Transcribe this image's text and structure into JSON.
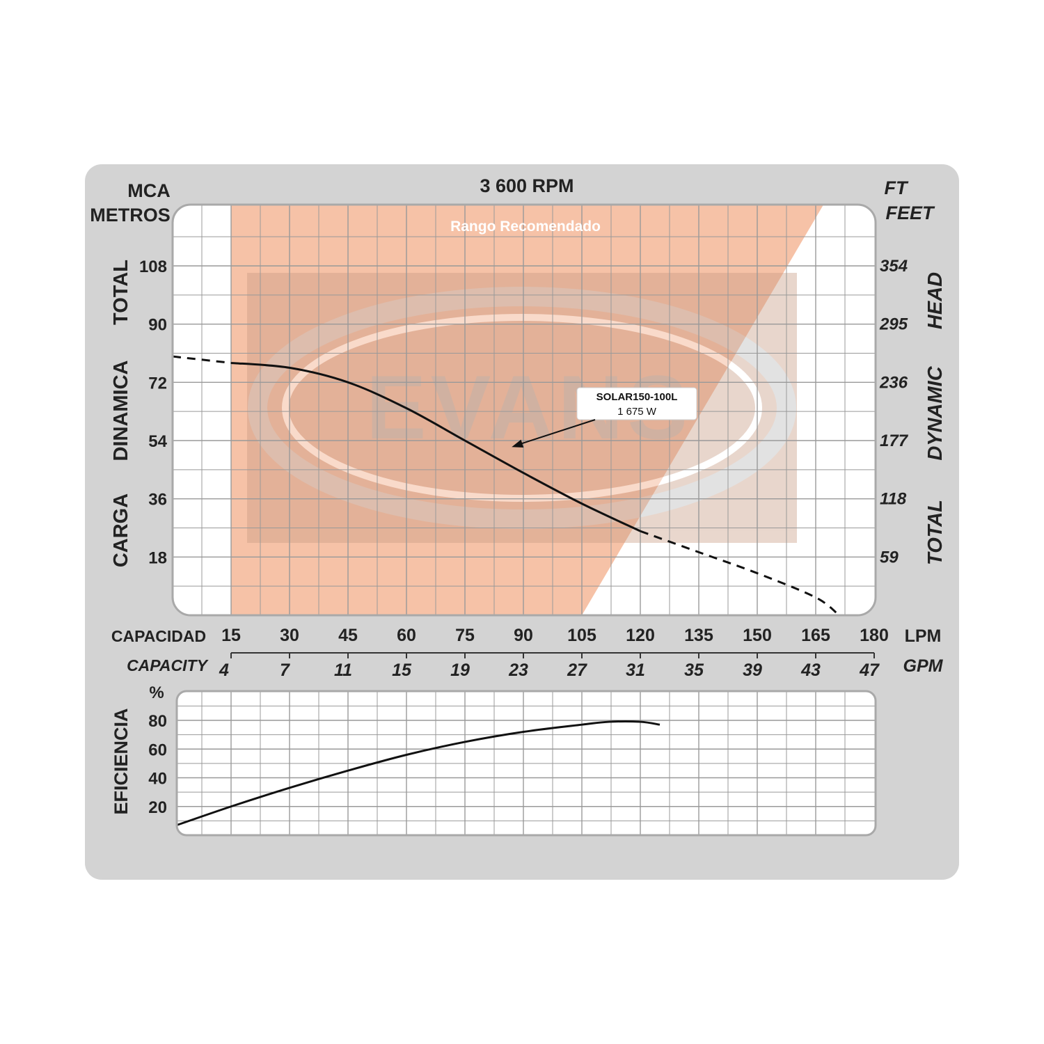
{
  "chart_data": [
    {
      "type": "line",
      "title": "3 600 RPM",
      "left_axis_unit": "MCA",
      "left_axis_unit2": "METROS",
      "left_axis_label_words": [
        "CARGA",
        "DINAMICA",
        "TOTAL"
      ],
      "right_axis_unit": "FT",
      "right_axis_unit2": "FEET",
      "right_axis_label_words": [
        "TOTAL",
        "DYNAMIC",
        "HEAD"
      ],
      "y_ticks_m": [
        18,
        36,
        54,
        72,
        90,
        108
      ],
      "y_ticks_ft": [
        59,
        118,
        177,
        236,
        295,
        354
      ],
      "ylim": [
        0,
        126
      ],
      "x_label": "CAPACIDAD",
      "x_unit": "LPM",
      "x_ticks_lpm": [
        15,
        30,
        45,
        60,
        75,
        90,
        105,
        120,
        135,
        150,
        165,
        180
      ],
      "x_label2": "CAPACITY",
      "x_unit2": "GPM",
      "x_ticks_gpm": [
        4,
        7,
        11,
        15,
        19,
        23,
        27,
        31,
        35,
        39,
        43,
        47
      ],
      "xlim": [
        0,
        180
      ],
      "grid": true,
      "recommended_range_label": "Rango Recomendado",
      "recommended_range": {
        "top_lpm": [
          15,
          167
        ],
        "bottom_lpm": [
          15,
          105
        ]
      },
      "watermark": "EVANS",
      "annotation": {
        "line1": "SOLAR150-100L",
        "line2": "1 675 W",
        "points_to_lpm": 87,
        "points_to_head": 52
      },
      "series": [
        {
          "name": "SOLAR150-100L",
          "solid_x": [
            15,
            30,
            45,
            60,
            75,
            90,
            105,
            120
          ],
          "solid_y": [
            78,
            76.5,
            72,
            64,
            54,
            44,
            34.5,
            26
          ],
          "dashed_left_x": [
            0,
            15
          ],
          "dashed_left_y": [
            80,
            78
          ],
          "dashed_right_x": [
            120,
            135,
            150,
            165,
            171
          ],
          "dashed_right_y": [
            26,
            19.5,
            13,
            5.5,
            0
          ]
        }
      ]
    },
    {
      "type": "line",
      "ylabel": "EFICIENCIA",
      "y_unit": "%",
      "y_ticks": [
        20,
        40,
        60,
        80
      ],
      "ylim": [
        0,
        100
      ],
      "xlim": [
        0,
        180
      ],
      "grid": true,
      "series": [
        {
          "x": [
            0,
            15,
            30,
            45,
            60,
            75,
            90,
            105,
            112,
            120,
            125
          ],
          "y": [
            6,
            20,
            33,
            45,
            56,
            65,
            72,
            77,
            79,
            79,
            77
          ]
        }
      ]
    }
  ]
}
